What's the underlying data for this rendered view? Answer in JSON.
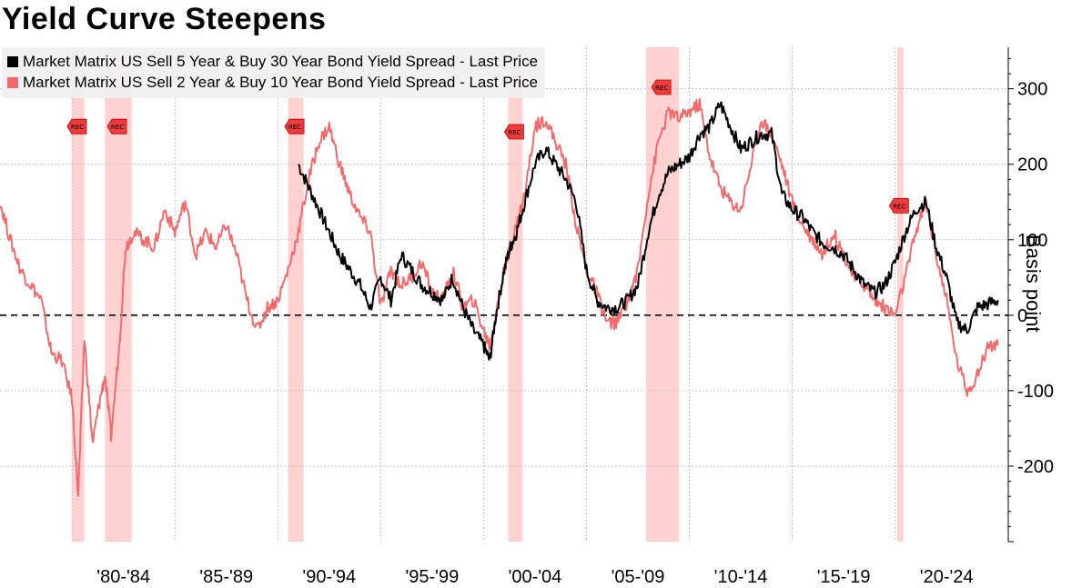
{
  "title": "Yield Curve Steepens",
  "chart_data": {
    "type": "line",
    "title": "Yield Curve Steepens",
    "ylabel": "Basis point",
    "ylim": [
      -300,
      355
    ],
    "xlim": [
      1976.5,
      2025.5
    ],
    "yticks": [
      300,
      200,
      100,
      0,
      -100,
      -200
    ],
    "x_tick_labels": [
      {
        "label": "'80-'84",
        "x": 1982.5
      },
      {
        "label": "'85-'89",
        "x": 1987.5
      },
      {
        "label": "'90-'94",
        "x": 1992.5
      },
      {
        "label": "'95-'99",
        "x": 1997.5
      },
      {
        "label": "'00-'04",
        "x": 2002.5
      },
      {
        "label": "'05-'09",
        "x": 2007.5
      },
      {
        "label": "'10-'14",
        "x": 2012.5
      },
      {
        "label": "'15-'19",
        "x": 2017.5
      },
      {
        "label": "'20-'24",
        "x": 2022.5
      }
    ],
    "zero_line": {
      "value": 0,
      "style": "dashed"
    },
    "recessions": [
      {
        "start": 1980.0,
        "end": 1980.6,
        "label": "REC",
        "marker_y": 250
      },
      {
        "start": 1981.6,
        "end": 1982.9,
        "label": "REC",
        "marker_y": 250
      },
      {
        "start": 1990.5,
        "end": 1991.25,
        "label": "REC",
        "marker_y": 250
      },
      {
        "start": 2001.2,
        "end": 2001.9,
        "label": "REC",
        "marker_y": 243
      },
      {
        "start": 2007.9,
        "end": 2009.5,
        "label": "REC",
        "marker_y": 302
      },
      {
        "start": 2020.1,
        "end": 2020.4,
        "label": "REC",
        "marker_y": 145
      }
    ],
    "series": [
      {
        "name": "Market Matrix US Sell 5 Year & Buy 30 Year Bond Yield Spread - Last Price",
        "color": "#000000",
        "x": [
          1991.0,
          1991.5,
          1992.0,
          1992.5,
          1993.0,
          1993.5,
          1994.0,
          1994.5,
          1995.0,
          1995.5,
          1996.0,
          1996.5,
          1997.0,
          1997.5,
          1998.0,
          1998.5,
          1999.0,
          1999.5,
          2000.0,
          2000.3,
          2000.6,
          2001.0,
          2001.3,
          2001.6,
          2002.0,
          2002.5,
          2003.0,
          2003.5,
          2004.0,
          2004.5,
          2005.0,
          2005.5,
          2006.0,
          2006.5,
          2007.0,
          2007.5,
          2008.0,
          2008.5,
          2009.0,
          2009.5,
          2010.0,
          2010.5,
          2011.0,
          2011.5,
          2012.0,
          2012.5,
          2013.0,
          2013.5,
          2014.0,
          2014.5,
          2015.0,
          2015.5,
          2016.0,
          2016.5,
          2017.0,
          2017.5,
          2018.0,
          2018.5,
          2019.0,
          2019.5,
          2020.0,
          2020.5,
          2021.0,
          2021.5,
          2022.0,
          2022.5,
          2023.0,
          2023.5,
          2024.0,
          2024.5,
          2025.0
        ],
        "values": [
          200,
          170,
          140,
          110,
          80,
          60,
          40,
          10,
          50,
          20,
          80,
          60,
          40,
          30,
          20,
          50,
          10,
          -20,
          -40,
          -60,
          0,
          60,
          90,
          110,
          150,
          200,
          220,
          200,
          180,
          150,
          60,
          20,
          10,
          10,
          20,
          40,
          110,
          160,
          190,
          200,
          210,
          240,
          250,
          280,
          250,
          220,
          230,
          240,
          240,
          160,
          140,
          130,
          110,
          95,
          90,
          80,
          60,
          40,
          30,
          40,
          70,
          110,
          140,
          150,
          90,
          50,
          -10,
          -20,
          10,
          15,
          20
        ]
      },
      {
        "name": "Market Matrix US Sell 2 Year & Buy 10 Year Bond Yield Spread - Last Price",
        "color": "#f46a6a",
        "x": [
          1976.5,
          1977.0,
          1977.5,
          1978.0,
          1978.5,
          1979.0,
          1979.5,
          1980.0,
          1980.3,
          1980.6,
          1981.0,
          1981.3,
          1981.6,
          1981.9,
          1982.3,
          1982.6,
          1983.0,
          1983.5,
          1984.0,
          1984.5,
          1985.0,
          1985.5,
          1986.0,
          1986.5,
          1987.0,
          1987.5,
          1988.0,
          1988.5,
          1989.0,
          1989.5,
          1990.0,
          1990.5,
          1991.0,
          1991.5,
          1992.0,
          1992.5,
          1993.0,
          1993.5,
          1994.0,
          1994.5,
          1995.0,
          1995.5,
          1996.0,
          1996.5,
          1997.0,
          1997.5,
          1998.0,
          1998.5,
          1999.0,
          1999.5,
          2000.0,
          2000.3,
          2000.6,
          2001.0,
          2001.3,
          2001.6,
          2002.0,
          2002.5,
          2003.0,
          2003.5,
          2004.0,
          2004.5,
          2005.0,
          2005.5,
          2006.0,
          2006.5,
          2007.0,
          2007.5,
          2008.0,
          2008.5,
          2009.0,
          2009.5,
          2010.0,
          2010.5,
          2011.0,
          2011.5,
          2012.0,
          2012.5,
          2013.0,
          2013.5,
          2014.0,
          2014.5,
          2015.0,
          2015.5,
          2016.0,
          2016.5,
          2017.0,
          2017.5,
          2018.0,
          2018.5,
          2019.0,
          2019.5,
          2020.0,
          2020.5,
          2021.0,
          2021.5,
          2022.0,
          2022.5,
          2023.0,
          2023.5,
          2024.0,
          2024.5,
          2025.0
        ],
        "values": [
          150,
          100,
          60,
          40,
          20,
          -50,
          -60,
          -110,
          -240,
          -30,
          -170,
          -120,
          -80,
          -160,
          -40,
          90,
          110,
          100,
          90,
          140,
          110,
          150,
          80,
          110,
          90,
          120,
          80,
          20,
          -20,
          10,
          20,
          60,
          110,
          180,
          230,
          250,
          200,
          160,
          130,
          110,
          10,
          60,
          40,
          50,
          70,
          30,
          20,
          60,
          10,
          20,
          -20,
          -40,
          0,
          60,
          90,
          120,
          160,
          250,
          260,
          230,
          200,
          120,
          60,
          30,
          -10,
          -10,
          20,
          60,
          160,
          230,
          270,
          260,
          270,
          280,
          210,
          170,
          150,
          140,
          200,
          260,
          240,
          200,
          150,
          120,
          100,
          80,
          110,
          80,
          50,
          40,
          20,
          10,
          0,
          50,
          110,
          150,
          80,
          20,
          -60,
          -100,
          -80,
          -40,
          -40
        ]
      }
    ]
  }
}
